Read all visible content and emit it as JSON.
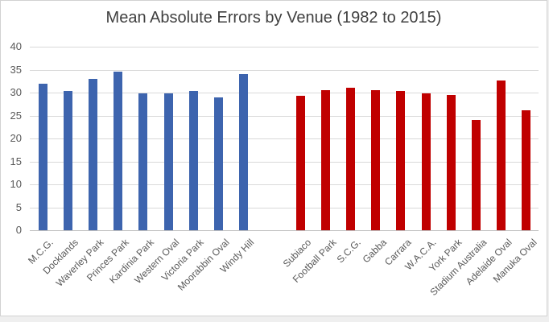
{
  "chart_data": {
    "type": "bar",
    "title": "Mean Absolute Errors by Venue (1982 to 2015)",
    "xlabel": "",
    "ylabel": "",
    "ylim": [
      0,
      40
    ],
    "yticks": [
      0,
      5,
      10,
      15,
      20,
      25,
      30,
      35,
      40
    ],
    "grid": "horizontal",
    "legend_position": "none",
    "groups": [
      {
        "name": "victorian-venues",
        "color": "#3d64ae",
        "categories": [
          "M.C.G.",
          "Docklands",
          "Waverley Park",
          "Princes Park",
          "Kardinia Park",
          "Western Oval",
          "Victoria Park",
          "Moorabbin Oval",
          "Windy Hill"
        ],
        "values": [
          31.9,
          30.3,
          32.9,
          34.6,
          29.8,
          29.9,
          30.4,
          29.0,
          34.1
        ]
      },
      {
        "name": "interstate-venues",
        "color": "#c00000",
        "categories": [
          "Subiaco",
          "Football Park",
          "S.C.G.",
          "Gabba",
          "Carrara",
          "W.A.C.A.",
          "York Park",
          "Stadium Australia",
          "Adelaide Oval",
          "Manuka Oval"
        ],
        "values": [
          29.3,
          30.6,
          31.0,
          30.5,
          30.4,
          29.8,
          29.5,
          24.0,
          32.6,
          26.2
        ]
      }
    ]
  }
}
